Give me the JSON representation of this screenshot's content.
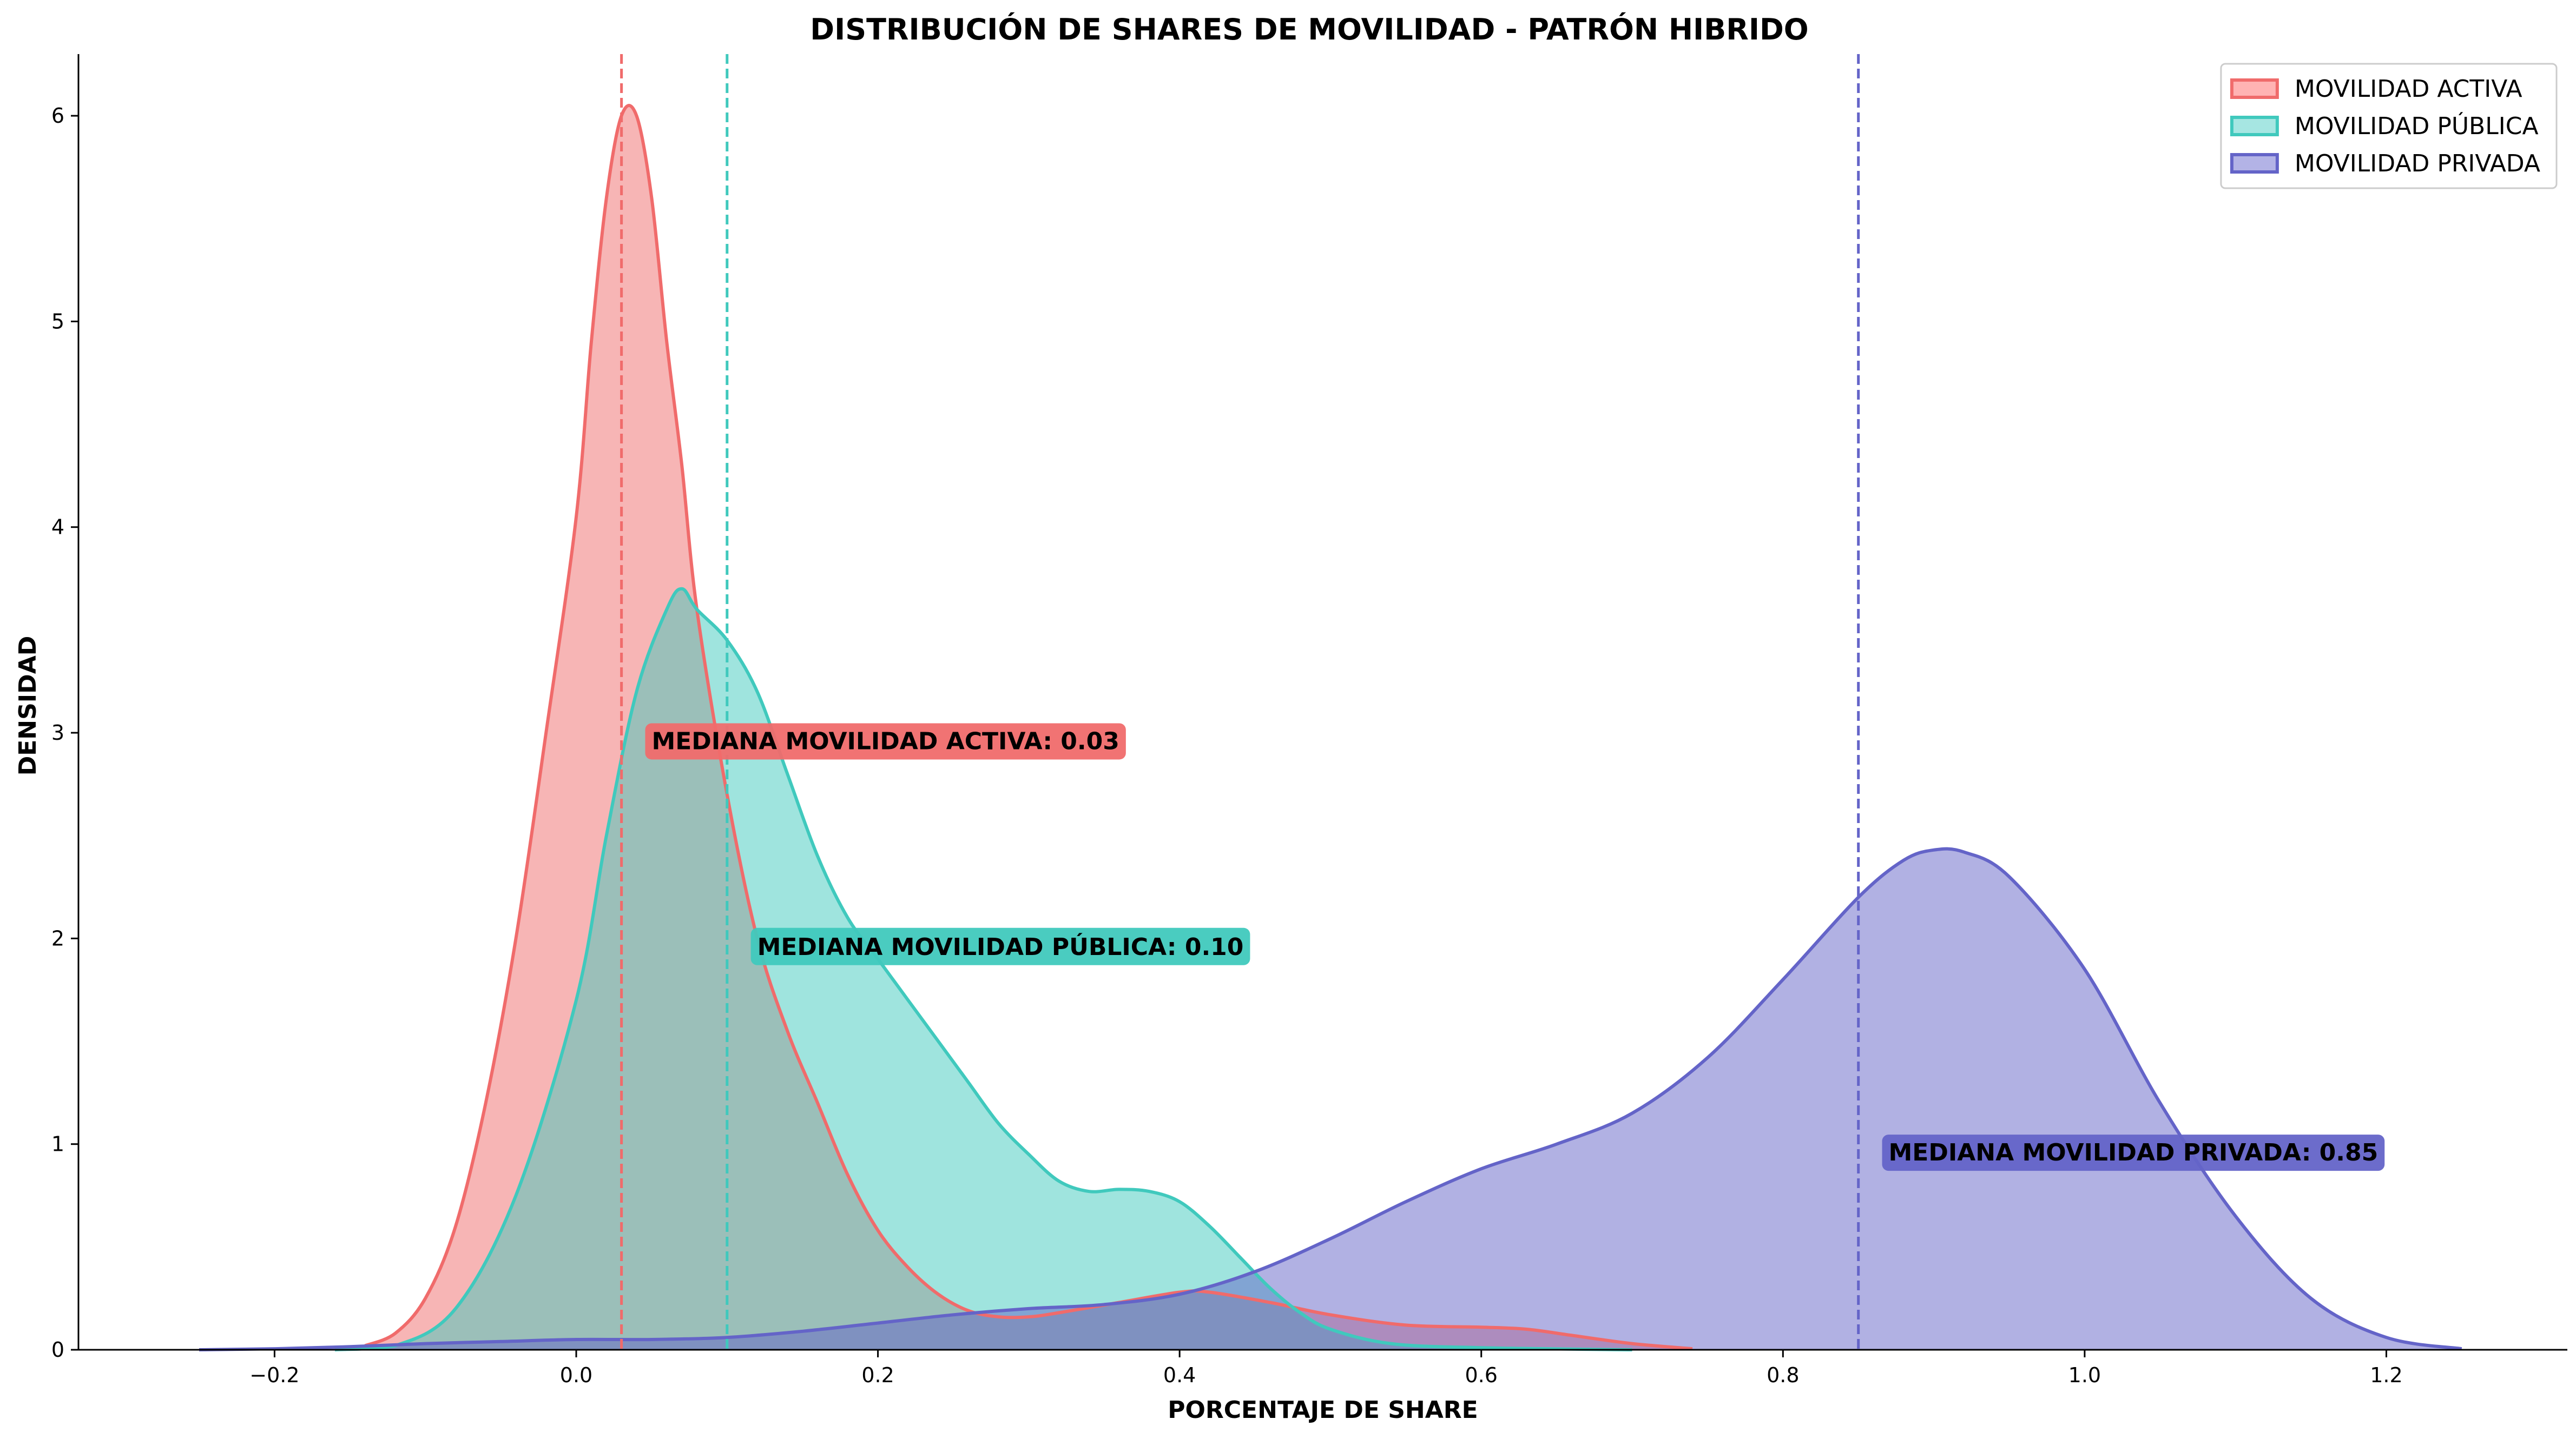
{
  "chart_data": {
    "type": "area",
    "title": "DISTRIBUCIÓN DE SHARES DE MOVILIDAD - PATRÓN HIBRIDO",
    "xlabel": "PORCENTAJE DE SHARE",
    "ylabel": "DENSIDAD",
    "xlim": [
      -0.33,
      1.32
    ],
    "ylim": [
      0,
      6.3
    ],
    "x_ticks": [
      -0.2,
      0.0,
      0.2,
      0.4,
      0.6,
      0.8,
      1.0,
      1.2
    ],
    "x_tick_labels": [
      "−0.2",
      "0.0",
      "0.2",
      "0.4",
      "0.6",
      "0.8",
      "1.0",
      "1.2"
    ],
    "y_ticks": [
      0,
      1,
      2,
      3,
      4,
      5,
      6
    ],
    "y_tick_labels": [
      "0",
      "1",
      "2",
      "3",
      "4",
      "5",
      "6"
    ],
    "grid": false,
    "legend_position": "top-right",
    "series": [
      {
        "name": "MOVILIDAD ACTIVA",
        "color": "#f06b6b",
        "fill": "#ffb3b3",
        "median": 0.03,
        "median_label": "MEDIANA MOVILIDAD ACTIVA: 0.03",
        "label_anchor": [
          0.045,
          2.92
        ],
        "points": [
          [
            -0.14,
            0.02
          ],
          [
            -0.12,
            0.08
          ],
          [
            -0.1,
            0.25
          ],
          [
            -0.08,
            0.6
          ],
          [
            -0.06,
            1.2
          ],
          [
            -0.04,
            2.0
          ],
          [
            -0.02,
            3.0
          ],
          [
            0.0,
            4.05
          ],
          [
            0.01,
            4.9
          ],
          [
            0.02,
            5.6
          ],
          [
            0.03,
            6.0
          ],
          [
            0.04,
            6.0
          ],
          [
            0.05,
            5.6
          ],
          [
            0.06,
            4.9
          ],
          [
            0.07,
            4.3
          ],
          [
            0.08,
            3.6
          ],
          [
            0.1,
            2.7
          ],
          [
            0.12,
            2.0
          ],
          [
            0.14,
            1.55
          ],
          [
            0.16,
            1.2
          ],
          [
            0.18,
            0.85
          ],
          [
            0.2,
            0.58
          ],
          [
            0.22,
            0.4
          ],
          [
            0.24,
            0.27
          ],
          [
            0.26,
            0.19
          ],
          [
            0.28,
            0.16
          ],
          [
            0.3,
            0.16
          ],
          [
            0.32,
            0.18
          ],
          [
            0.36,
            0.23
          ],
          [
            0.4,
            0.28
          ],
          [
            0.42,
            0.28
          ],
          [
            0.46,
            0.23
          ],
          [
            0.5,
            0.17
          ],
          [
            0.55,
            0.12
          ],
          [
            0.6,
            0.11
          ],
          [
            0.63,
            0.1
          ],
          [
            0.66,
            0.07
          ],
          [
            0.7,
            0.03
          ],
          [
            0.74,
            0.005
          ]
        ]
      },
      {
        "name": "MOVILIDAD PÚBLICA",
        "color": "#40c9bd",
        "fill": "#a6e6e2",
        "median": 0.1,
        "median_label": "MEDIANA MOVILIDAD PÚBLICA: 0.10",
        "label_anchor": [
          0.115,
          1.92
        ],
        "points": [
          [
            -0.16,
            0.0
          ],
          [
            -0.12,
            0.02
          ],
          [
            -0.08,
            0.2
          ],
          [
            -0.04,
            0.75
          ],
          [
            0.0,
            1.7
          ],
          [
            0.02,
            2.5
          ],
          [
            0.04,
            3.2
          ],
          [
            0.06,
            3.6
          ],
          [
            0.07,
            3.7
          ],
          [
            0.08,
            3.6
          ],
          [
            0.1,
            3.45
          ],
          [
            0.12,
            3.2
          ],
          [
            0.14,
            2.8
          ],
          [
            0.16,
            2.4
          ],
          [
            0.18,
            2.1
          ],
          [
            0.2,
            1.9
          ],
          [
            0.22,
            1.7
          ],
          [
            0.24,
            1.5
          ],
          [
            0.26,
            1.3
          ],
          [
            0.28,
            1.1
          ],
          [
            0.3,
            0.95
          ],
          [
            0.32,
            0.82
          ],
          [
            0.34,
            0.77
          ],
          [
            0.36,
            0.78
          ],
          [
            0.38,
            0.77
          ],
          [
            0.4,
            0.72
          ],
          [
            0.42,
            0.6
          ],
          [
            0.44,
            0.45
          ],
          [
            0.46,
            0.3
          ],
          [
            0.48,
            0.18
          ],
          [
            0.5,
            0.1
          ],
          [
            0.54,
            0.03
          ],
          [
            0.6,
            0.01
          ],
          [
            0.7,
            0.0
          ]
        ]
      },
      {
        "name": "MOVILIDAD PRIVADA",
        "color": "#6464c8",
        "fill": "#b3b3e6",
        "median": 0.85,
        "median_label": "MEDIANA MOVILIDAD PRIVADA: 0.85",
        "label_anchor": [
          0.865,
          0.92
        ],
        "points": [
          [
            -0.25,
            0.0
          ],
          [
            -0.2,
            0.005
          ],
          [
            -0.15,
            0.015
          ],
          [
            -0.1,
            0.03
          ],
          [
            -0.05,
            0.04
          ],
          [
            0.0,
            0.05
          ],
          [
            0.05,
            0.05
          ],
          [
            0.1,
            0.06
          ],
          [
            0.15,
            0.09
          ],
          [
            0.2,
            0.13
          ],
          [
            0.25,
            0.17
          ],
          [
            0.3,
            0.2
          ],
          [
            0.35,
            0.22
          ],
          [
            0.4,
            0.27
          ],
          [
            0.45,
            0.38
          ],
          [
            0.5,
            0.54
          ],
          [
            0.55,
            0.72
          ],
          [
            0.6,
            0.88
          ],
          [
            0.65,
            1.0
          ],
          [
            0.7,
            1.15
          ],
          [
            0.75,
            1.42
          ],
          [
            0.8,
            1.8
          ],
          [
            0.85,
            2.2
          ],
          [
            0.88,
            2.38
          ],
          [
            0.9,
            2.43
          ],
          [
            0.92,
            2.42
          ],
          [
            0.95,
            2.3
          ],
          [
            1.0,
            1.85
          ],
          [
            1.05,
            1.2
          ],
          [
            1.1,
            0.65
          ],
          [
            1.15,
            0.25
          ],
          [
            1.2,
            0.06
          ],
          [
            1.25,
            0.005
          ]
        ]
      }
    ]
  }
}
